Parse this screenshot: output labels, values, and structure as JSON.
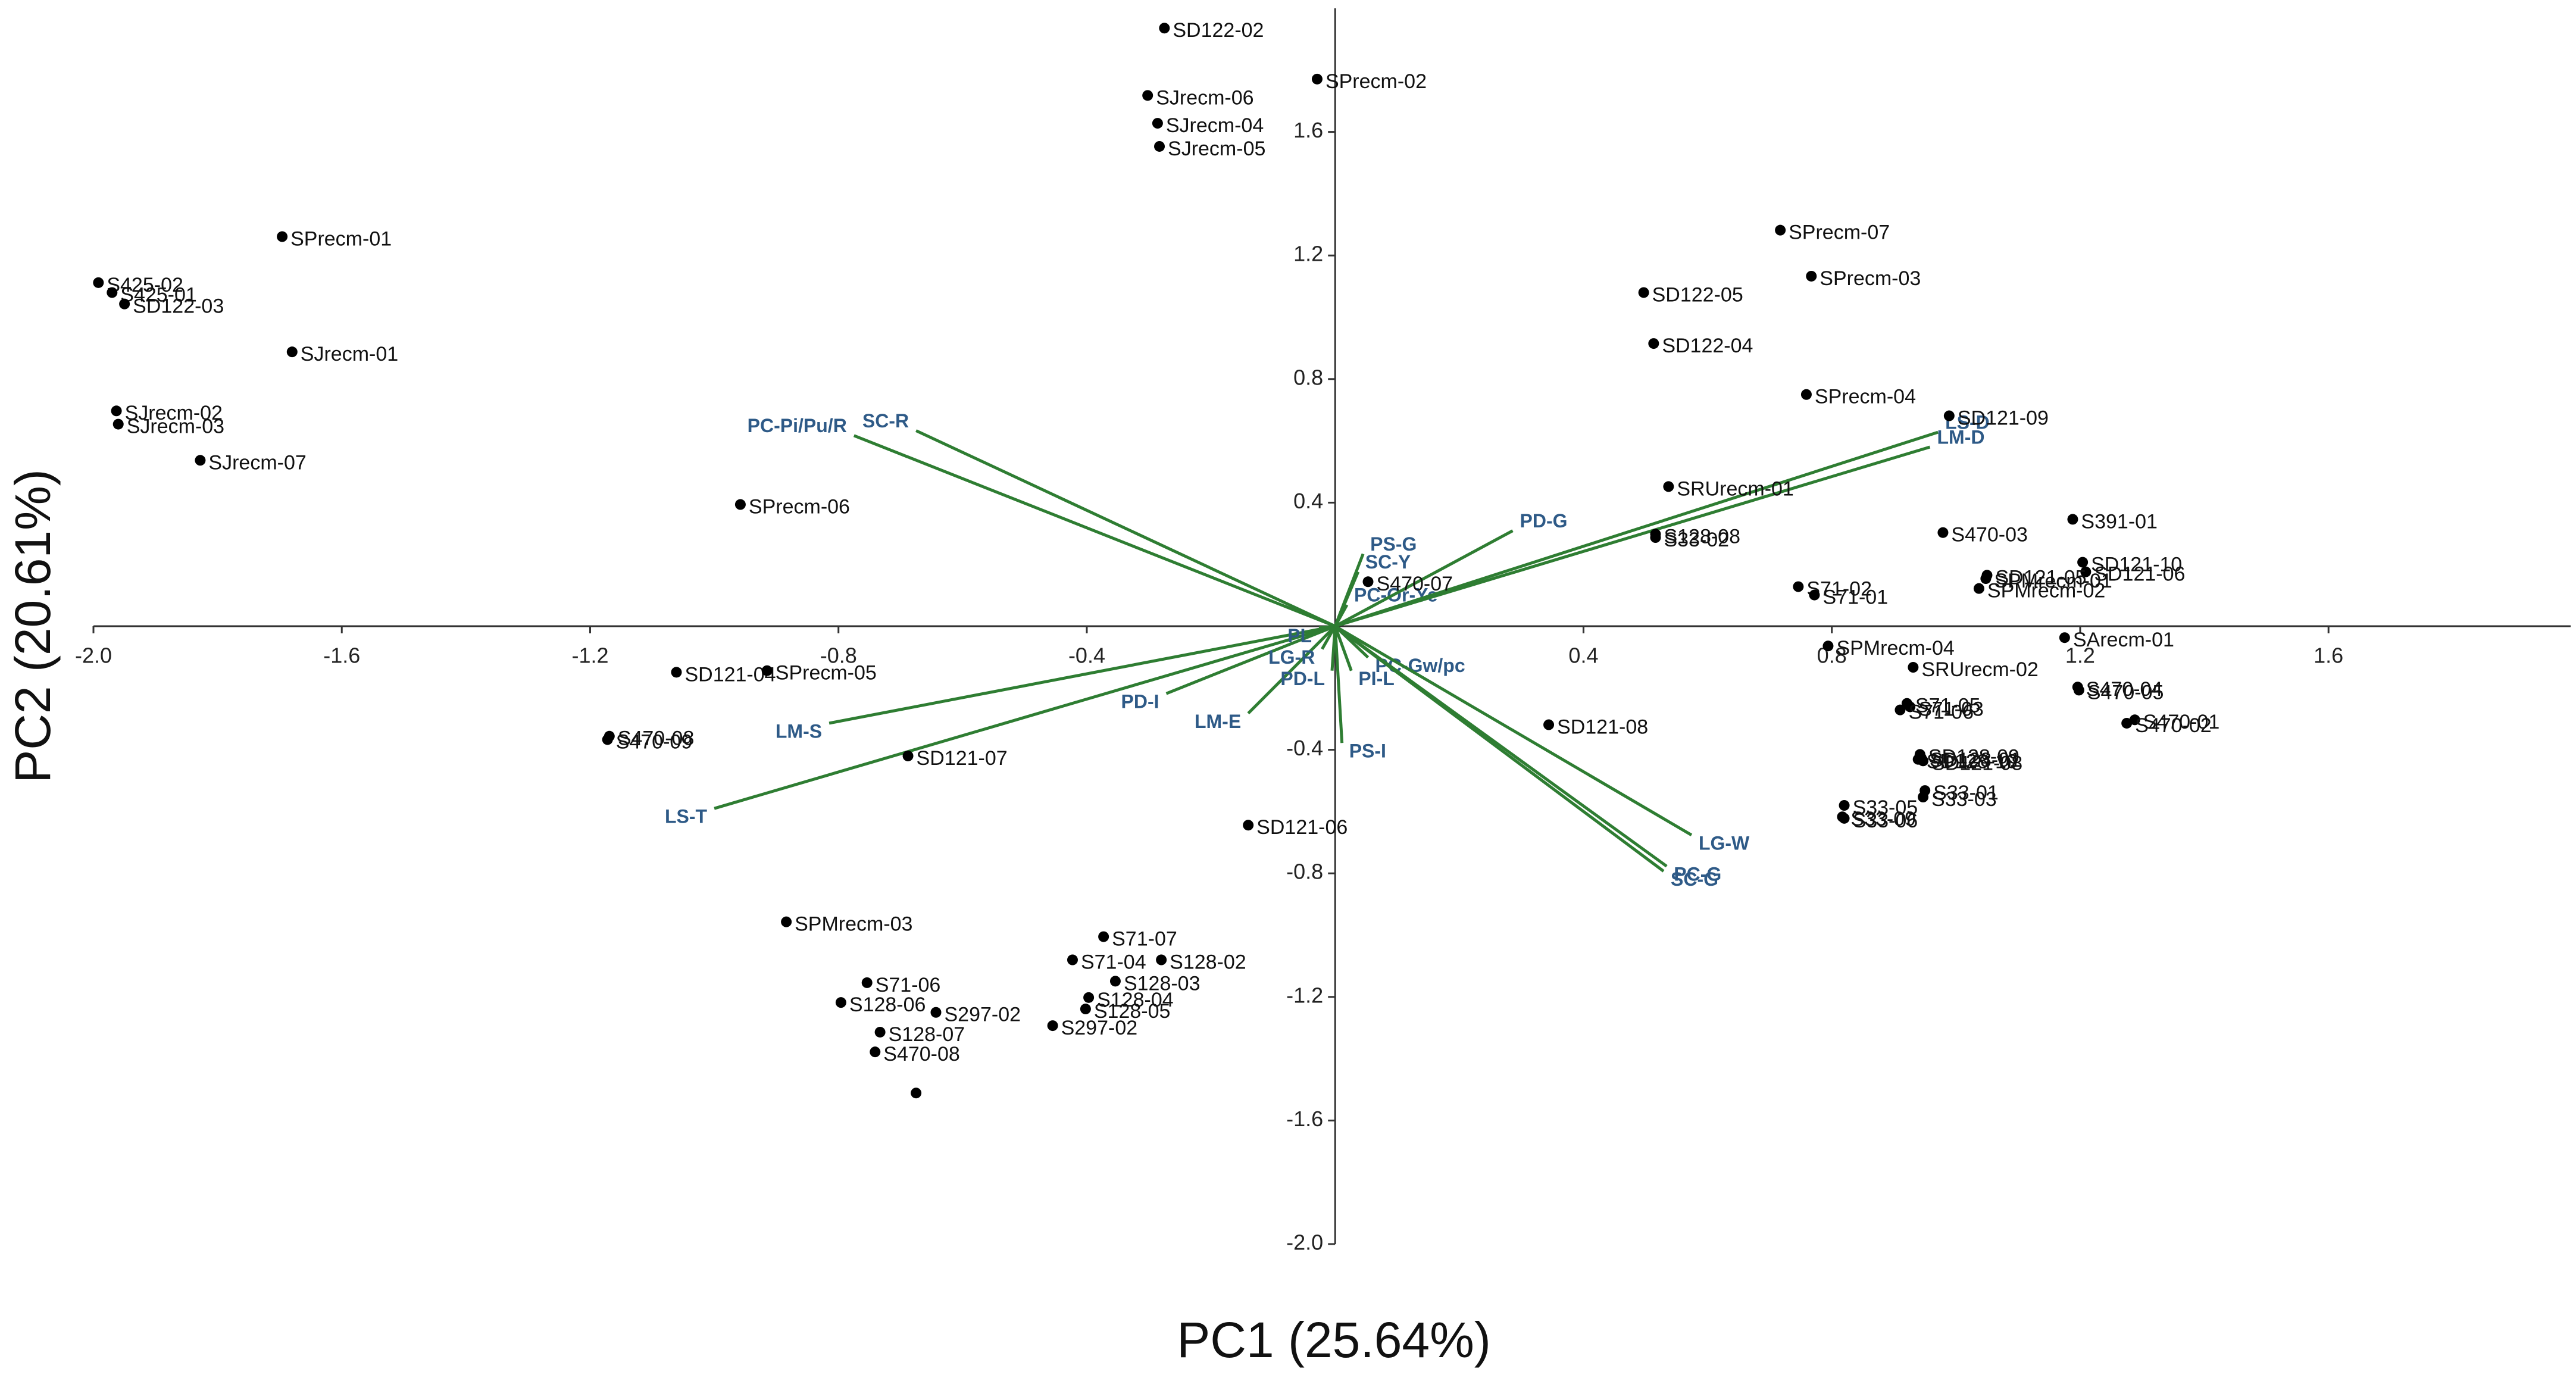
{
  "chart_data": {
    "type": "biplot",
    "x_label": "PC1 (25.64%)",
    "y_label": "PC2 (20.61%)",
    "xlim": [
      -2.0,
      1.99
    ],
    "ylim": [
      -2.0,
      2.0
    ],
    "xticks": [
      {
        "value": -2.0,
        "label": "-2.0"
      },
      -1.6,
      -1.2,
      -0.8,
      -0.4,
      0.4,
      0.8,
      1.2,
      1.6
    ],
    "yticks": [
      1.6,
      1.2,
      0.8,
      0.4,
      -0.4,
      -0.8,
      -1.2,
      -1.6,
      {
        "value": -2.0,
        "label": "-2.0"
      }
    ],
    "points": {
      "color": "#000000",
      "labels": [
        "SD122-02",
        "SPrecm-02",
        "SJrecm-06",
        "SJrecm-04",
        "SJrecm-05",
        "SPrecm-01",
        "S425-02",
        "S425-01",
        "SD122-03",
        "SJrecm-01",
        "SJrecm-02",
        "SJrecm-03",
        "SJrecm-07",
        "SPrecm-06",
        "SD121-04",
        "SPrecm-05",
        "S470-08",
        "S470-09",
        "SD121-07",
        "SD121-06",
        "SPMrecm-03",
        "S71-07",
        "S71-04",
        "S128-02",
        "S128-03",
        "S128-04",
        "S128-05",
        "S297-02",
        "S71-06",
        "S128-06",
        "S297-02",
        "S128-07",
        "S470-08",
        null,
        "SPrecm-07",
        "SPrecm-03",
        "SD122-05",
        "SD122-04",
        "SPrecm-04",
        "SD121-09",
        "SRUrecm-01",
        "S128-08",
        "S33-02",
        "S470-07",
        "S470-03",
        "S391-01",
        "SD121-10",
        "SD121-06",
        "SD121-05",
        "SPMrecm-01",
        "SPMrecm-02",
        "S71-02",
        "S71-01",
        "SPMrecm-04",
        "SArecm-01",
        "SRUrecm-02",
        "S470-04",
        "S470-05",
        "S470-01",
        "S470-02",
        "S71-05",
        "S71-03",
        "S71-06",
        "SD121-08",
        "SD128-09",
        "SD128-01",
        "SD128-10",
        "SD121-08",
        "S33-01",
        "S33-05",
        "S33-03",
        "S33-09",
        "S33-06"
      ],
      "x": [
        -0.275,
        -0.029,
        -0.302,
        -0.286,
        -0.283,
        -1.696,
        -1.992,
        -1.97,
        -1.95,
        -1.68,
        -1.963,
        -1.96,
        -1.828,
        -0.958,
        -1.061,
        -0.915,
        -1.169,
        -1.172,
        -0.688,
        -0.14,
        -0.884,
        -0.373,
        -0.423,
        -0.28,
        -0.354,
        -0.397,
        -0.402,
        -0.455,
        -0.754,
        -0.796,
        -0.643,
        -0.733,
        -0.741,
        -0.675,
        0.717,
        0.767,
        0.497,
        0.513,
        0.759,
        0.989,
        0.537,
        0.516,
        0.516,
        0.053,
        0.979,
        1.188,
        1.204,
        1.209,
        1.05,
        1.048,
        1.037,
        0.746,
        0.772,
        0.794,
        1.175,
        0.931,
        1.196,
        1.198,
        1.288,
        1.275,
        0.921,
        0.926,
        0.91,
        0.344,
        0.942,
        0.944,
        0.939,
        0.947,
        0.95,
        0.82,
        0.947,
        0.817,
        0.82
      ],
      "y": [
        1.936,
        1.771,
        1.718,
        1.628,
        1.553,
        1.261,
        1.112,
        1.08,
        1.043,
        0.888,
        0.697,
        0.654,
        0.537,
        0.394,
        -0.149,
        -0.144,
        -0.356,
        -0.367,
        -0.42,
        -0.644,
        -0.957,
        -1.005,
        -1.08,
        -1.08,
        -1.149,
        -1.202,
        -1.239,
        -1.293,
        -1.154,
        -1.218,
        -1.25,
        -1.314,
        -1.378,
        -1.511,
        1.282,
        1.133,
        1.08,
        0.915,
        0.75,
        0.681,
        0.452,
        0.298,
        0.287,
        0.144,
        0.303,
        0.346,
        0.207,
        0.176,
        0.165,
        0.154,
        0.122,
        0.128,
        0.101,
        -0.064,
        -0.037,
        -0.133,
        -0.197,
        -0.207,
        -0.303,
        -0.314,
        -0.25,
        -0.261,
        -0.271,
        -0.319,
        -0.415,
        -0.426,
        -0.431,
        -0.436,
        -0.532,
        -0.58,
        -0.553,
        -0.617,
        -0.622
      ]
    },
    "loadings": {
      "color": "#2e7d32",
      "labels": [
        "PC-Pi/Pu/R",
        "SC-R",
        "LM-S",
        "LS-T",
        "PD-I",
        "LM-E",
        "PS-G",
        "SC-Y",
        "PC-Or-Ye",
        "PL",
        "LG-R",
        "PD-L",
        "PI-L",
        "PC-Gw/pc",
        "PS-I",
        "PD-G",
        "LS-D",
        "LM-D",
        "LG-W",
        "PC-G",
        "SC-G"
      ],
      "x": [
        -0.775,
        -0.675,
        -0.815,
        -1.0,
        -0.272,
        -0.14,
        0.045,
        0.037,
        0.019,
        -0.026,
        -0.021,
        -0.005,
        0.026,
        0.053,
        0.011,
        0.286,
        0.971,
        0.958,
        0.574,
        0.534,
        0.529
      ],
      "y": [
        0.617,
        0.633,
        -0.314,
        -0.59,
        -0.218,
        -0.282,
        0.234,
        0.176,
        0.069,
        -0.005,
        -0.074,
        -0.144,
        -0.144,
        -0.101,
        -0.378,
        0.309,
        0.628,
        0.58,
        -0.676,
        -0.777,
        -0.793
      ]
    }
  }
}
